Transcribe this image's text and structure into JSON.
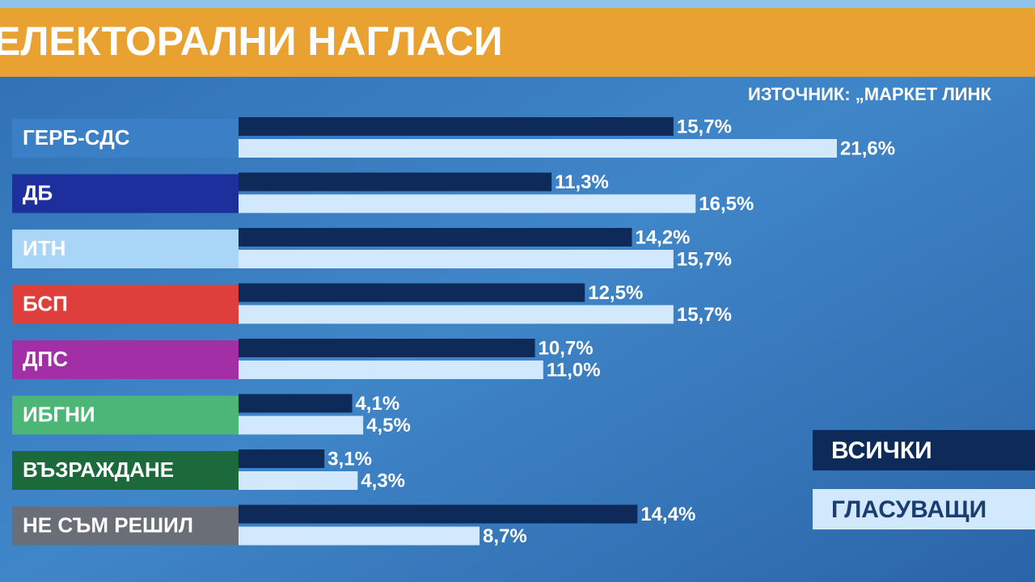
{
  "chart_data": {
    "type": "bar",
    "orientation": "horizontal",
    "title": "ЕЛЕКТОРАЛНИ НАГЛАСИ",
    "subtitle": "ИЗТОЧНИК: „МАРКЕТ ЛИНК",
    "categories": [
      "ГЕРБ-СДС",
      "ДБ",
      "ИТН",
      "БСП",
      "ДПС",
      "ИБГНИ",
      "ВЪЗРАЖДАНЕ",
      "НЕ СЪМ РЕШИЛ"
    ],
    "category_colors": [
      "#3b7fc6",
      "#1d2f9c",
      "#a9d5f6",
      "#df3f3c",
      "#a22fa6",
      "#4bb676",
      "#1c6a3b",
      "#6a6e77"
    ],
    "series": [
      {
        "name": "ВСИЧКИ",
        "color": "#0d2a59",
        "values": [
          15.7,
          11.3,
          14.2,
          12.5,
          10.7,
          4.1,
          3.1,
          14.4
        ],
        "value_labels": [
          "15,7%",
          "11,3%",
          "14,2%",
          "12,5%",
          "10,7%",
          "4,1%",
          "3,1%",
          "14,4%"
        ]
      },
      {
        "name": "ГЛАСУВАЩИ",
        "color": "#d2e8fc",
        "values": [
          21.6,
          16.5,
          15.7,
          15.7,
          11.0,
          4.5,
          4.3,
          8.7
        ],
        "value_labels": [
          "21,6%",
          "16,5%",
          "15,7%",
          "15,7%",
          "11,0%",
          "4,5%",
          "4,3%",
          "8,7%"
        ]
      }
    ]
  }
}
